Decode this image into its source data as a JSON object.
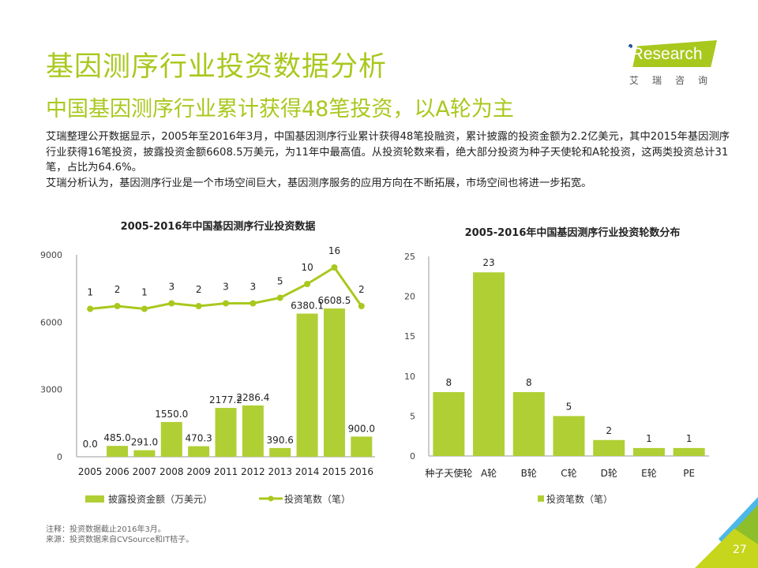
{
  "header": {
    "title": "基因测序行业投资数据分析",
    "subtitle": "中国基因测序行业累计获得48笔投资，以A轮为主"
  },
  "logo": {
    "brand": "iResearch",
    "cn": "艾瑞咨询"
  },
  "body": {
    "paragraph1": "艾瑞整理公开数据显示，2005年至2016年3月，中国基因测序行业累计获得48笔投融资，累计披露的投资金额为2.2亿美元，其中2015年基因测序行业获得16笔投资，披露投资金额6608.5万美元，为11年中最高值。从投资轮数来看，绝大部分投资为种子天使轮和A轮投资，这两类投资总计31笔，占比为64.6%。",
    "paragraph2": "艾瑞分析认为，基因测序行业是一个市场空间巨大，基因测序服务的应用方向在不断拓展，市场空间也将进一步拓宽。"
  },
  "footer": {
    "note": "注释：投资数据截止2016年3月。",
    "source": "来源：投资数据来自CVSource和IT桔子。",
    "page": "27"
  },
  "colors": {
    "accent": "#a9c81e",
    "bar": "#b0cf34",
    "blue": "#4db8e8"
  },
  "chart_data": [
    {
      "type": "bar+line",
      "title": "2005-2016年中国基因测序行业投资数据",
      "categories": [
        "2005",
        "2006",
        "2007",
        "2008",
        "2009",
        "2011",
        "2012",
        "2013",
        "2014",
        "2015",
        "2016"
      ],
      "series": [
        {
          "name": "披露投资金额（万美元）",
          "type": "bar",
          "values": [
            0.0,
            485.0,
            291.0,
            1550.0,
            470.3,
            2177.2,
            2286.4,
            390.6,
            6380.1,
            6608.5,
            900.0
          ],
          "labels": [
            "0.0",
            "485.0",
            "291.0",
            "1550.0",
            "470.3",
            "2177.2",
            "2286.4",
            "390.6",
            "6380.1",
            "6608.5",
            "900.0"
          ]
        },
        {
          "name": "投资笔数（笔）",
          "type": "line",
          "values": [
            1,
            2,
            1,
            3,
            2,
            3,
            3,
            5,
            10,
            16,
            2
          ]
        }
      ],
      "yticks": [
        "0",
        "3000",
        "6000",
        "9000"
      ],
      "ylim": [
        0,
        9000
      ],
      "legend": "bottom"
    },
    {
      "type": "bar",
      "title": "2005-2016年中国基因测序行业投资轮数分布",
      "categories": [
        "种子天使轮",
        "A轮",
        "B轮",
        "C轮",
        "D轮",
        "E轮",
        "PE"
      ],
      "series": [
        {
          "name": "投资笔数（笔）",
          "values": [
            8,
            23,
            8,
            5,
            2,
            1,
            1
          ]
        }
      ],
      "yticks": [
        "0",
        "5",
        "10",
        "15",
        "20",
        "25"
      ],
      "ylim": [
        0,
        25
      ],
      "legend": "bottom"
    }
  ]
}
